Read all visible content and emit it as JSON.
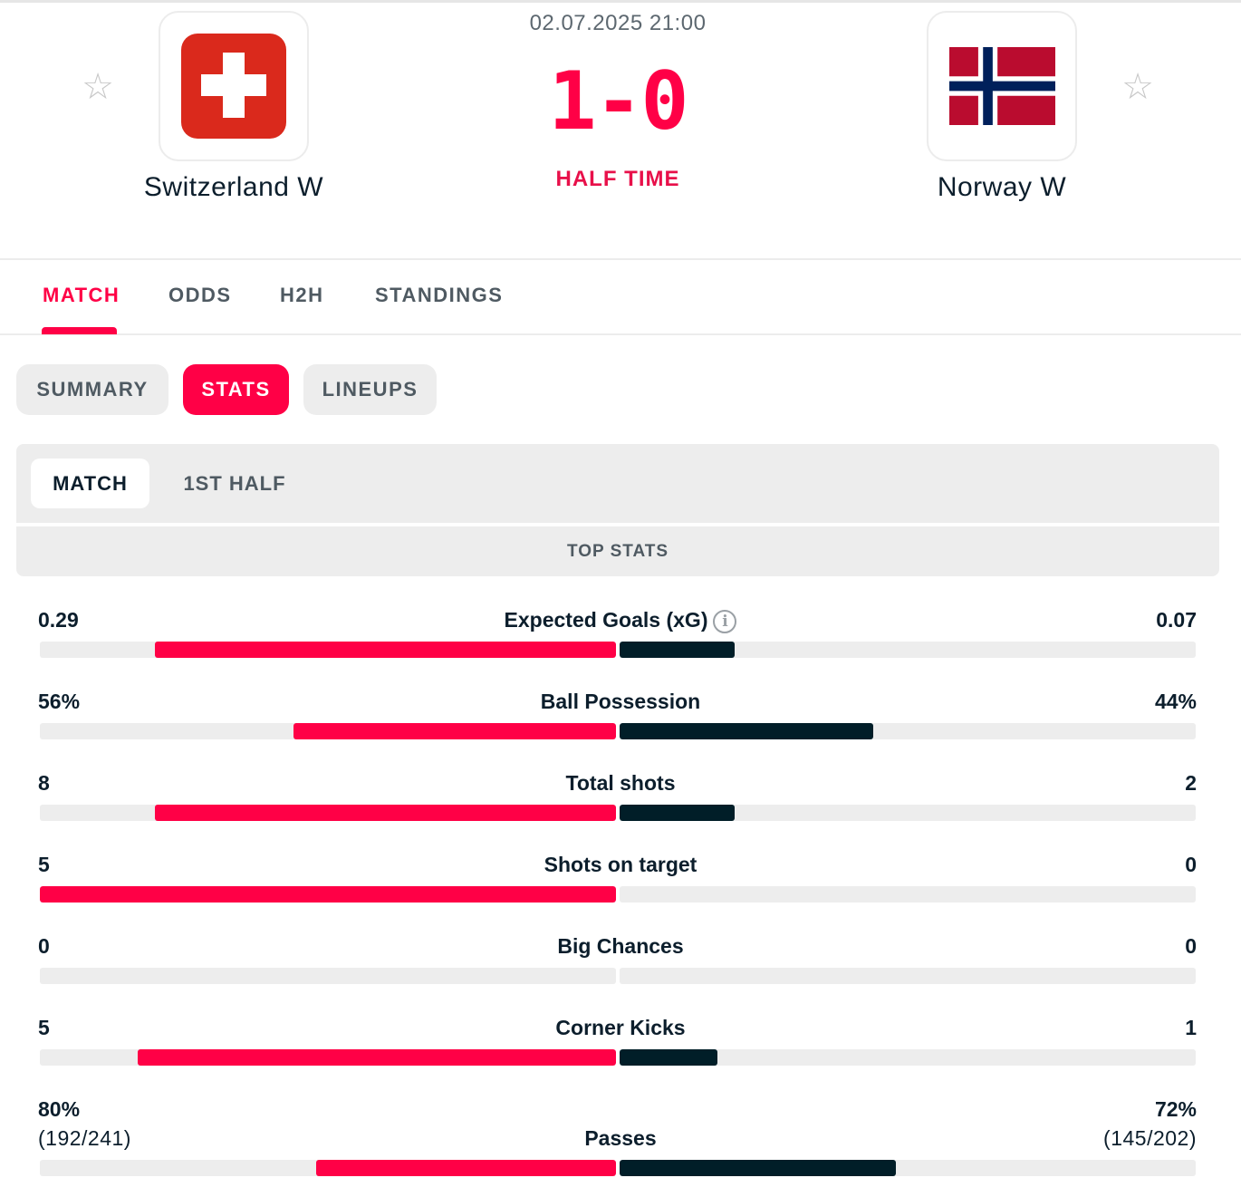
{
  "match": {
    "datetime": "02.07.2025 21:00",
    "score": "1-0",
    "status": "HALF TIME",
    "home": {
      "name": "Switzerland W",
      "flag_icon": "switzerland-flag-icon"
    },
    "away": {
      "name": "Norway W",
      "flag_icon": "norway-flag-icon"
    }
  },
  "favorite_icon": "☆",
  "main_tabs": [
    "MATCH",
    "ODDS",
    "H2H",
    "STANDINGS"
  ],
  "sub_tabs": [
    "SUMMARY",
    "STATS",
    "LINEUPS"
  ],
  "period_tabs": [
    "MATCH",
    "1ST HALF"
  ],
  "section_title": "TOP STATS",
  "colors": {
    "accent": "#ff0046",
    "away_bar": "#011e28",
    "track": "#ededed"
  },
  "stats": [
    {
      "label": "Expected Goals (xG)",
      "home": "0.29",
      "away": "0.07",
      "home_share": 0.8,
      "away_share": 0.2,
      "info_icon": "i"
    },
    {
      "label": "Ball Possession",
      "home": "56%",
      "away": "44%",
      "home_share": 0.56,
      "away_share": 0.44
    },
    {
      "label": "Total shots",
      "home": "8",
      "away": "2",
      "home_share": 0.8,
      "away_share": 0.2
    },
    {
      "label": "Shots on target",
      "home": "5",
      "away": "0",
      "home_share": 1.0,
      "away_share": 0.0
    },
    {
      "label": "Big Chances",
      "home": "0",
      "away": "0",
      "home_share": 0.0,
      "away_share": 0.0
    },
    {
      "label": "Corner Kicks",
      "home": "5",
      "away": "1",
      "home_share": 0.83,
      "away_share": 0.17
    },
    {
      "label": "Passes",
      "home": "80%",
      "home_detail": "(192/241)",
      "away": "72%",
      "away_detail": "(145/202)",
      "home_share": 0.52,
      "away_share": 0.48
    }
  ]
}
